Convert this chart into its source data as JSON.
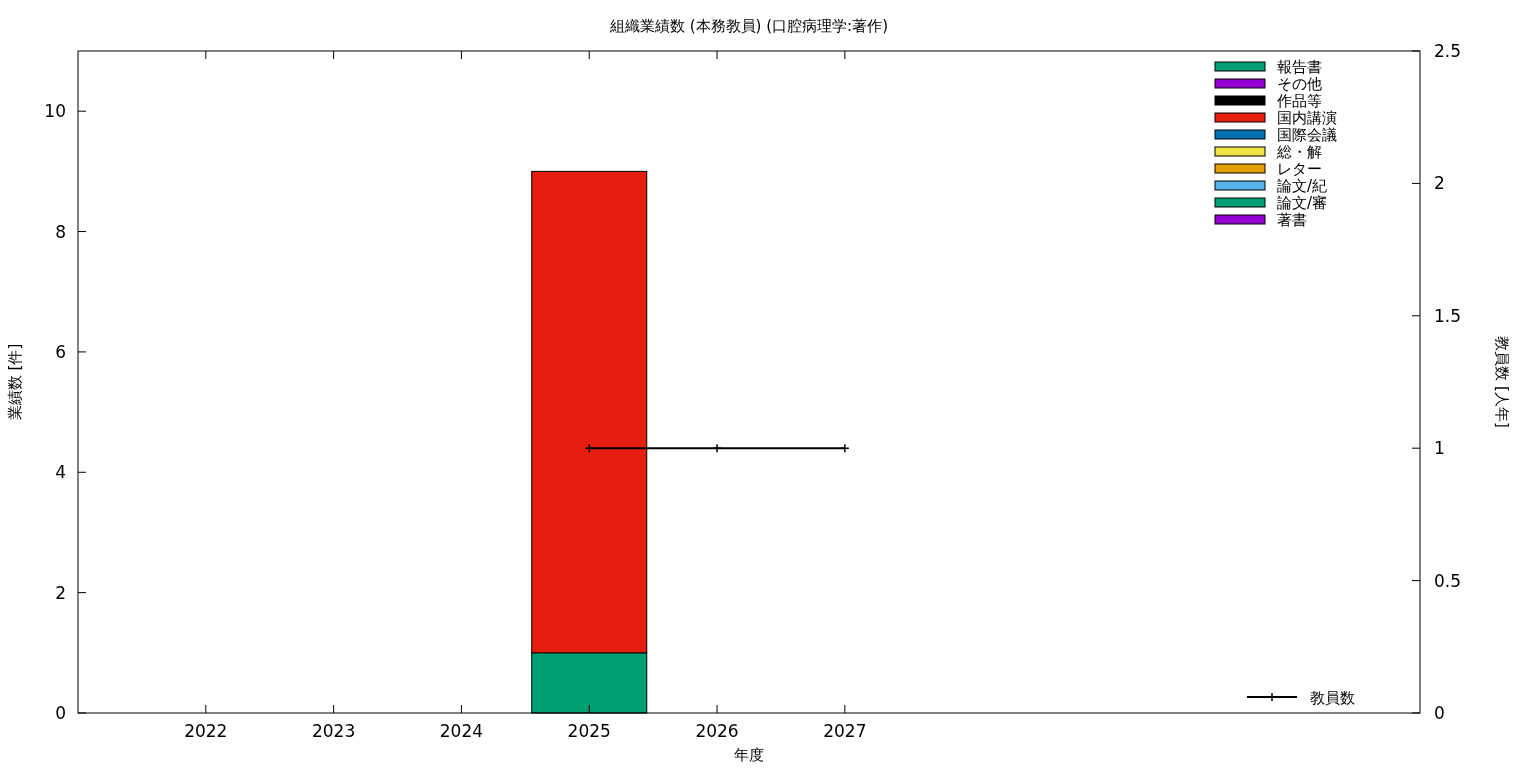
{
  "chart_data": {
    "type": "bar",
    "title": "組織業績数 (本務教員) (口腔病理学:著作)",
    "xlabel": "年度",
    "ylabel": "業績数 [件]",
    "y2label": "教員数 [人年]",
    "stacked": true,
    "legend": "right",
    "x": [
      2022,
      2023,
      2024,
      2025,
      2026,
      2027
    ],
    "xlim": [
      2021,
      2031.5
    ],
    "xticks": [
      2022,
      2023,
      2024,
      2025,
      2026,
      2027
    ],
    "ylim": [
      0,
      11
    ],
    "yticks": [
      0,
      2,
      4,
      6,
      8,
      10
    ],
    "y2lim": [
      0,
      2.5
    ],
    "y2ticks": [
      0,
      0.5,
      1,
      1.5,
      2,
      2.5
    ],
    "series": [
      {
        "name": "著書",
        "color": "#9400d3",
        "values": [
          0,
          0,
          0,
          0,
          0,
          0
        ]
      },
      {
        "name": "論文/審",
        "color": "#009e73",
        "values": [
          0,
          0,
          0,
          1,
          0,
          0
        ]
      },
      {
        "name": "論文/紀",
        "color": "#56b4e9",
        "values": [
          0,
          0,
          0,
          0,
          0,
          0
        ]
      },
      {
        "name": "レター",
        "color": "#e69f00",
        "values": [
          0,
          0,
          0,
          0,
          0,
          0
        ]
      },
      {
        "name": "総・解",
        "color": "#f0e442",
        "values": [
          0,
          0,
          0,
          0,
          0,
          0
        ]
      },
      {
        "name": "国際会議",
        "color": "#0072b2",
        "values": [
          0,
          0,
          0,
          0,
          0,
          0
        ]
      },
      {
        "name": "国内講演",
        "color": "#e51e10",
        "values": [
          0,
          0,
          0,
          8,
          0,
          0
        ]
      },
      {
        "name": "作品等",
        "color": "#000000",
        "values": [
          0,
          0,
          0,
          0,
          0,
          0
        ]
      },
      {
        "name": "その他",
        "color": "#9400d3",
        "values": [
          0,
          0,
          0,
          0,
          0,
          0
        ]
      },
      {
        "name": "報告書",
        "color": "#009e73",
        "values": [
          0,
          0,
          0,
          0,
          0,
          0
        ]
      },
      {
        "name": "教員数",
        "type": "line",
        "axis": "y2",
        "marker": "cross",
        "line_style": "solid",
        "color": "#000000",
        "values": [
          null,
          null,
          null,
          1,
          1,
          1
        ]
      }
    ]
  }
}
